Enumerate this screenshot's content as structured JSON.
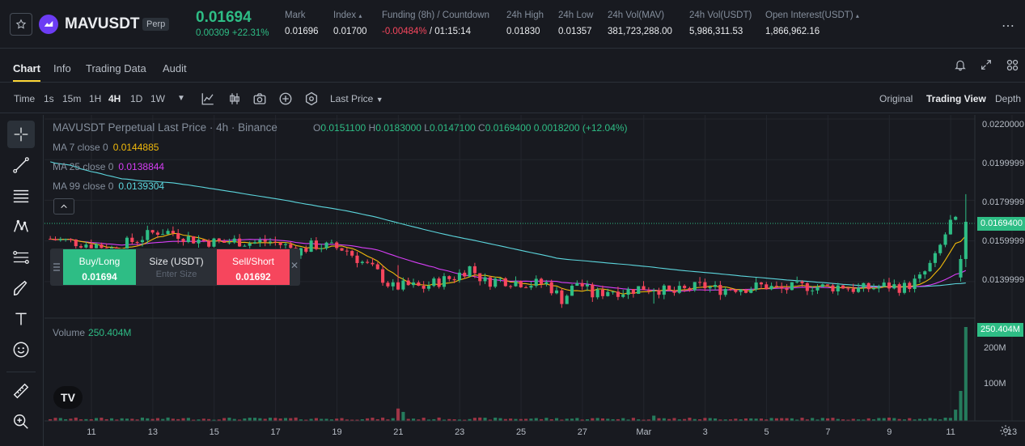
{
  "ticker": {
    "symbol": "MAVUSDT",
    "badge": "Perp",
    "last_price": "0.01694",
    "change": "0.00309 +22.31%",
    "stats": [
      {
        "label": "Mark",
        "value": "0.01696"
      },
      {
        "label": "Index",
        "value": "0.01700"
      },
      {
        "label": "Funding (8h) / Countdown",
        "value_neg": "-0.00484%",
        "value": " / 01:15:14"
      },
      {
        "label": "24h High",
        "value": "0.01830"
      },
      {
        "label": "24h Low",
        "value": "0.01357"
      },
      {
        "label": "24h Vol(MAV)",
        "value": "381,723,288.00"
      },
      {
        "label": "24h Vol(USDT)",
        "value": "5,986,311.53"
      },
      {
        "label": "Open Interest(USDT)",
        "value": "1,866,962.16"
      }
    ],
    "colors": {
      "up": "#2ebd85",
      "down": "#f6465d",
      "accent": "#fcd535"
    }
  },
  "tabs": [
    "Chart",
    "Info",
    "Trading Data",
    "Audit"
  ],
  "toolbar": {
    "time_label": "Time",
    "intervals": [
      "1s",
      "15m",
      "1H",
      "4H",
      "1D",
      "1W"
    ],
    "active_interval": "4H",
    "price_type": "Last Price",
    "views": [
      "Original",
      "Trading View",
      "Depth"
    ],
    "active_view": "Trading View"
  },
  "chart": {
    "title": "MAVUSDT Perpetual Last Price · 4h · Binance",
    "ohlc": {
      "o": "0.0151100",
      "h": "0.0183000",
      "l": "0.0147100",
      "c": "0.0169400",
      "chg": "0.0018200 (+12.04%)"
    },
    "ma": [
      {
        "label": "MA 7 close 0",
        "value": "0.0144885",
        "color": "#f0b90b"
      },
      {
        "label": "MA 25 close 0",
        "value": "0.0138844",
        "color": "#d63ef5"
      },
      {
        "label": "MA 99 close 0",
        "value": "0.0139304",
        "color": "#5cd6dd"
      }
    ],
    "volume_label": "Volume",
    "volume_value": "250.404M",
    "price_axis": [
      "0.0220000",
      "0.0199999",
      "0.0179999",
      "0.0159999",
      "0.0139999"
    ],
    "current_price_tag": "0.0169400",
    "volume_tag": "250.404M",
    "volume_axis": [
      "200M",
      "100M"
    ],
    "time_axis": [
      "11",
      "13",
      "15",
      "17",
      "19",
      "21",
      "23",
      "25",
      "27",
      "Mar",
      "3",
      "5",
      "7",
      "9",
      "11",
      "13"
    ]
  },
  "trade_panel": {
    "buy_label": "Buy/Long",
    "buy_price": "0.01694",
    "size_label": "Size (USDT)",
    "size_placeholder": "Enter Size",
    "sell_label": "Sell/Short",
    "sell_price": "0.01692"
  },
  "chart_data": {
    "type": "candlestick",
    "title": "MAVUSDT Perpetual Last Price · 4h · Binance",
    "price_range": [
      0.0122,
      0.0222
    ],
    "price_ticks": [
      0.022,
      0.0199999,
      0.0179999,
      0.0159999,
      0.0139999
    ],
    "volume_ticks_M": [
      100,
      200
    ],
    "dates": [
      "11",
      "13",
      "15",
      "17",
      "19",
      "21",
      "23",
      "25",
      "27",
      "Mar",
      "3",
      "5",
      "7",
      "9",
      "11",
      "13"
    ],
    "candles_per_day": 6,
    "days_shown": 30,
    "price_path": [
      [
        0.0161,
        0.016,
        0.0159,
        0.0158,
        0.0156,
        0.0159,
        0.0162,
        0.0165,
        0.0164,
        0.0161,
        0.016,
        0.0159,
        0.016,
        0.0159,
        0.016,
        0.0158,
        0.0155,
        0.0158,
        0.0157,
        0.0156,
        0.015,
        0.0145,
        0.0137,
        0.0138,
        0.0137,
        0.014,
        0.0142,
        0.0147,
        0.014,
        0.0141,
        0.014,
        0.0139,
        0.0139,
        0.0131,
        0.014,
        0.0133,
        0.0136,
        0.0135,
        0.0137,
        0.0137,
        0.0134,
        0.0136,
        0.0138,
        0.0136,
        0.0137,
        0.0137,
        0.0138,
        0.0136,
        0.0137,
        0.0138,
        0.0137,
        0.0138,
        0.0136,
        0.0137,
        0.0138,
        0.0137,
        0.0141,
        0.0151,
        0.0169,
        0.0169
      ]
    ],
    "moving_averages": [
      {
        "name": "MA 7 close 0",
        "last": 0.0144885
      },
      {
        "name": "MA 25 close 0",
        "last": 0.0138844
      },
      {
        "name": "MA 99 close 0",
        "last": 0.0139304
      }
    ],
    "last_candle": {
      "open": 0.01511,
      "high": 0.0183,
      "low": 0.01471,
      "close": 0.01694
    },
    "last_volume_M": 250.404
  }
}
